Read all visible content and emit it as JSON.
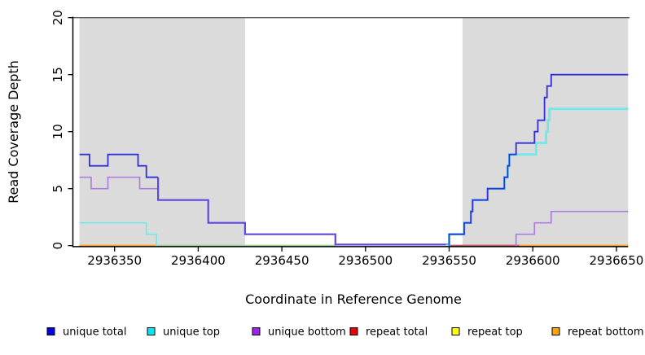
{
  "figure": {
    "x_label": "Coordinate in Reference Genome",
    "y_label": "Read Coverage Depth",
    "x_ticks": [
      2936350,
      2936400,
      2936450,
      2936500,
      2936550,
      2936600,
      2936650
    ],
    "y_ticks": [
      0,
      5,
      10,
      15,
      20
    ]
  },
  "legend": [
    {
      "label": "unique total",
      "color": "#0000EE"
    },
    {
      "label": "unique top",
      "color": "#00E8EE"
    },
    {
      "label": "unique bottom",
      "color": "#A020F0"
    },
    {
      "label": "repeat total",
      "color": "#EE0000"
    },
    {
      "label": "repeat top",
      "color": "#FFFF00"
    },
    {
      "label": "repeat bottom",
      "color": "#FFA500"
    }
  ],
  "chart_data": {
    "type": "line",
    "subtype": "step-coverage",
    "title": "",
    "xlabel": "Coordinate in Reference Genome",
    "ylabel": "Read Coverage Depth",
    "xlim": [
      2936325,
      2936657
    ],
    "ylim": [
      0,
      20
    ],
    "grid": false,
    "legend_position": "bottom",
    "shaded_regions": [
      [
        2936329,
        2936428
      ],
      [
        2936558,
        2936657
      ]
    ],
    "shade_color": "#DBDBDB",
    "series": [
      {
        "name": "unique total",
        "color": "#0000EE",
        "steps": [
          [
            2936329,
            2936335,
            8
          ],
          [
            2936335,
            2936346,
            7
          ],
          [
            2936346,
            2936364,
            8
          ],
          [
            2936364,
            2936369,
            7
          ],
          [
            2936369,
            2936376,
            6
          ],
          [
            2936376,
            2936406,
            4
          ],
          [
            2936406,
            2936428,
            2
          ],
          [
            2936428,
            2936482,
            1
          ],
          [
            2936482,
            2936550,
            0
          ],
          [
            2936550,
            2936559,
            1
          ],
          [
            2936559,
            2936563,
            2
          ],
          [
            2936563,
            2936564,
            3
          ],
          [
            2936564,
            2936573,
            4
          ],
          [
            2936573,
            2936583,
            5
          ],
          [
            2936583,
            2936585,
            6
          ],
          [
            2936585,
            2936586,
            7
          ],
          [
            2936586,
            2936590,
            8
          ],
          [
            2936590,
            2936601,
            9
          ],
          [
            2936601,
            2936603,
            10
          ],
          [
            2936603,
            2936607,
            11
          ],
          [
            2936607,
            2936608.5,
            13
          ],
          [
            2936608.5,
            2936611,
            14
          ],
          [
            2936611,
            2936657,
            15
          ]
        ]
      },
      {
        "name": "unique top",
        "color": "#00E8EE",
        "steps": [
          [
            2936329,
            2936369,
            2
          ],
          [
            2936369,
            2936375,
            1
          ],
          [
            2936375,
            2936550,
            0
          ],
          [
            2936550,
            2936559,
            1
          ],
          [
            2936559,
            2936563,
            2
          ],
          [
            2936563,
            2936564,
            3
          ],
          [
            2936564,
            2936573,
            4
          ],
          [
            2936573,
            2936583,
            5
          ],
          [
            2936583,
            2936585,
            6
          ],
          [
            2936585,
            2936586,
            7
          ],
          [
            2936586,
            2936602,
            8
          ],
          [
            2936602,
            2936608,
            9
          ],
          [
            2936608,
            2936609,
            10
          ],
          [
            2936609,
            2936610,
            11
          ],
          [
            2936610,
            2936657,
            12
          ]
        ]
      },
      {
        "name": "unique bottom",
        "color": "#A020F0",
        "steps": [
          [
            2936329,
            2936336,
            6
          ],
          [
            2936336,
            2936346,
            5
          ],
          [
            2936346,
            2936365,
            6
          ],
          [
            2936365,
            2936376,
            5
          ],
          [
            2936376,
            2936406,
            4
          ],
          [
            2936406,
            2936428,
            2
          ],
          [
            2936428,
            2936482,
            1
          ],
          [
            2936482,
            2936590,
            0
          ],
          [
            2936590,
            2936601,
            1
          ],
          [
            2936601,
            2936611,
            2
          ],
          [
            2936611,
            2936657,
            3
          ]
        ]
      },
      {
        "name": "repeat total",
        "color": "#EE0000",
        "steps": [
          [
            2936329,
            2936657,
            0
          ]
        ]
      },
      {
        "name": "repeat top",
        "color": "#FFFF00",
        "steps": [
          [
            2936329,
            2936657,
            0
          ]
        ]
      },
      {
        "name": "repeat bottom",
        "color": "#FFA500",
        "steps": [
          [
            2936329,
            2936657,
            0
          ]
        ]
      }
    ],
    "render": {
      "top_border_color": "#5F5F5F",
      "zero_segments": [
        {
          "from": 2936329,
          "to": 2936375,
          "color": "#FF9E1B"
        },
        {
          "from": 2936375,
          "to": 2936482,
          "color": "#8FD98F"
        },
        {
          "from": 2936550,
          "to": 2936592,
          "color": "#C85064"
        },
        {
          "from": 2936592,
          "to": 2936657,
          "color": "#FF9E1B"
        }
      ],
      "paths": [
        {
          "name": "unique-bottom-left",
          "color": "#B07CE0",
          "w": 1.7,
          "steps": [
            [
              2936329,
              2936336,
              6
            ],
            [
              2936336,
              2936346,
              5
            ],
            [
              2936346,
              2936365,
              6
            ],
            [
              2936365,
              2936376,
              5
            ]
          ]
        },
        {
          "name": "unique-top-left",
          "color": "#72E9E9",
          "w": 1.7,
          "steps": [
            [
              2936329,
              2936369,
              2
            ],
            [
              2936369,
              2936375,
              1
            ],
            [
              2936375,
              2936376,
              0
            ]
          ]
        },
        {
          "name": "unique-total-left",
          "color": "#2F2FE0",
          "w": 1.8,
          "steps": [
            [
              2936329,
              2936335,
              8
            ],
            [
              2936335,
              2936346,
              7
            ],
            [
              2936346,
              2936364,
              8
            ],
            [
              2936364,
              2936369,
              7
            ],
            [
              2936369,
              2936376,
              6
            ]
          ]
        },
        {
          "name": "unique-total-bottom-overlap",
          "color": "#5B48E0",
          "w": 2.2,
          "v0": 6,
          "steps": [
            [
              2936376,
              2936406,
              4
            ],
            [
              2936406,
              2936428,
              2
            ],
            [
              2936428,
              2936482,
              1
            ],
            [
              2936482,
              2936550,
              0.09
            ]
          ]
        },
        {
          "name": "unique-top-right",
          "color": "#72E9E9",
          "w": 2.8,
          "steps": [
            [
              2936548,
              2936550,
              0
            ],
            [
              2936550,
              2936559,
              1
            ],
            [
              2936559,
              2936563,
              2
            ],
            [
              2936563,
              2936564,
              3
            ],
            [
              2936564,
              2936573,
              4
            ],
            [
              2936573,
              2936583,
              5
            ],
            [
              2936583,
              2936585,
              6
            ],
            [
              2936585,
              2936586,
              7
            ],
            [
              2936586,
              2936602,
              8
            ],
            [
              2936602,
              2936608,
              9
            ],
            [
              2936608,
              2936609,
              10
            ],
            [
              2936609,
              2936610,
              11
            ],
            [
              2936610,
              2936657,
              12
            ]
          ]
        },
        {
          "name": "unique-total-right",
          "color": "#2F2FE0",
          "w": 1.8,
          "v0": 0,
          "steps": [
            [
              2936550,
              2936559,
              1
            ],
            [
              2936559,
              2936563,
              2
            ],
            [
              2936563,
              2936564,
              3
            ],
            [
              2936564,
              2936573,
              4
            ],
            [
              2936573,
              2936583,
              5
            ],
            [
              2936583,
              2936585,
              6
            ],
            [
              2936585,
              2936586,
              7
            ],
            [
              2936586,
              2936590,
              8
            ],
            [
              2936590,
              2936601,
              9
            ],
            [
              2936601,
              2936603,
              10
            ],
            [
              2936603,
              2936607,
              11
            ],
            [
              2936607,
              2936608.5,
              13
            ],
            [
              2936608.5,
              2936611,
              14
            ],
            [
              2936611,
              2936657,
              15
            ]
          ]
        },
        {
          "name": "unique-bottom-right",
          "color": "#B07CE0",
          "w": 1.7,
          "v0": 0,
          "steps": [
            [
              2936590,
              2936601,
              1
            ],
            [
              2936601,
              2936611,
              2
            ],
            [
              2936611,
              2936657,
              3
            ]
          ]
        }
      ]
    }
  }
}
